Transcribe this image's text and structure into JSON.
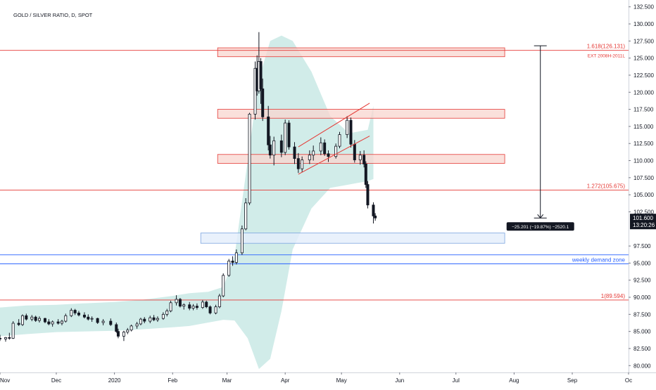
{
  "chart_data": {
    "type": "candlestick",
    "title": "GOLD / SILVER RATIO, D, SPOT",
    "x_labels": [
      {
        "date": "2019-11-01",
        "label": "Nov"
      },
      {
        "date": "2019-12-01",
        "label": "Dec"
      },
      {
        "date": "2020-01-01",
        "label": "2020"
      },
      {
        "date": "2020-02-01",
        "label": "Feb"
      },
      {
        "date": "2020-03-01",
        "label": "Mar"
      },
      {
        "date": "2020-04-01",
        "label": "Apr"
      },
      {
        "date": "2020-05-01",
        "label": "May"
      },
      {
        "date": "2020-06-01",
        "label": "Jun"
      },
      {
        "date": "2020-07-01",
        "label": "Jul"
      },
      {
        "date": "2020-08-01",
        "label": "Aug"
      },
      {
        "date": "2020-09-01",
        "label": "Sep"
      },
      {
        "date": "2020-10-01",
        "label": "Oc"
      }
    ],
    "xlim": [
      "2019-11-01",
      "2020-10-01"
    ],
    "ylim": [
      79.0,
      133.5
    ],
    "y_ticks": [
      "132.500",
      "130.000",
      "127.500",
      "125.000",
      "122.500",
      "120.000",
      "117.500",
      "115.000",
      "112.500",
      "110.000",
      "107.500",
      "105.000",
      "102.500",
      "97.500",
      "95.000",
      "92.500",
      "90.000",
      "87.500",
      "85.000",
      "82.500",
      "80.000"
    ],
    "last_price": {
      "value": 101.6,
      "label": "101.600",
      "countdown": "13:20:26"
    },
    "horizontal_levels": [
      {
        "value": 126.131,
        "label": "1.618(126.131)",
        "sublabel": "EXT 2008H-2011L",
        "color": "#e53935"
      },
      {
        "value": 105.675,
        "label": "1.272(105.675)",
        "color": "#e53935"
      },
      {
        "value": 89.594,
        "label": "1(89.594)",
        "color": "#e53935"
      },
      {
        "value": 96.2,
        "label": "",
        "color": "#2962ff"
      },
      {
        "value": 94.9,
        "label": "weekly demand zone",
        "color": "#2962ff"
      }
    ],
    "zones": [
      {
        "from": "2020-02-25",
        "to": "2020-07-27",
        "low": 125.2,
        "high": 126.5,
        "color": "red"
      },
      {
        "from": "2020-02-25",
        "to": "2020-07-27",
        "low": 116.2,
        "high": 117.5,
        "color": "red"
      },
      {
        "from": "2020-02-25",
        "to": "2020-07-27",
        "low": 109.6,
        "high": 110.9,
        "color": "red"
      },
      {
        "from": "2020-02-16",
        "to": "2020-07-27",
        "low": 97.9,
        "high": 99.4,
        "color": "blue"
      }
    ],
    "channel": [
      {
        "x1": "2020-04-08",
        "y1": 112.0,
        "x2": "2020-05-16",
        "y2": 118.4
      },
      {
        "x1": "2020-04-08",
        "y1": 108.0,
        "x2": "2020-05-16",
        "y2": 113.6
      }
    ],
    "measure": {
      "x": "2020-08-15",
      "from": 126.8,
      "to": 101.6,
      "label": "−25.201 (−19.87%) −2520.1"
    },
    "band": {
      "dates": [
        "2019-11-01",
        "2019-11-15",
        "2019-12-01",
        "2019-12-15",
        "2020-01-01",
        "2020-01-15",
        "2020-02-01",
        "2020-02-10",
        "2020-02-20",
        "2020-02-28",
        "2020-03-05",
        "2020-03-12",
        "2020-03-18",
        "2020-03-24",
        "2020-03-30",
        "2020-04-05",
        "2020-04-15",
        "2020-04-25",
        "2020-05-05",
        "2020-05-15",
        "2020-05-18"
      ],
      "upper": [
        88.5,
        88.8,
        88.9,
        89.1,
        89.3,
        89.6,
        90.2,
        90.6,
        90.8,
        91.5,
        96.0,
        110.0,
        122.0,
        127.5,
        128.3,
        127.5,
        123.0,
        116.5,
        114.0,
        114.5,
        118.0
      ],
      "lower": [
        84.3,
        84.6,
        84.9,
        85.0,
        85.1,
        85.3,
        85.6,
        85.8,
        86.3,
        86.7,
        86.6,
        84.0,
        79.5,
        81.0,
        88.0,
        97.0,
        103.0,
        106.0,
        106.5,
        107.0,
        107.3
      ]
    },
    "candles": [
      [
        "2019-11-01",
        84.0,
        84.5,
        83.6,
        83.9
      ],
      [
        "2019-11-04",
        83.9,
        84.2,
        83.5,
        84.1
      ],
      [
        "2019-11-06",
        84.1,
        84.8,
        83.8,
        84.0
      ],
      [
        "2019-11-08",
        84.0,
        86.5,
        83.9,
        86.2
      ],
      [
        "2019-11-11",
        86.2,
        86.8,
        85.8,
        86.0
      ],
      [
        "2019-11-13",
        86.0,
        87.5,
        85.8,
        87.3
      ],
      [
        "2019-11-15",
        87.3,
        87.6,
        86.6,
        86.8
      ],
      [
        "2019-11-18",
        86.8,
        87.4,
        86.5,
        87.1
      ],
      [
        "2019-11-20",
        87.1,
        87.3,
        86.4,
        86.6
      ],
      [
        "2019-11-22",
        86.6,
        87.2,
        86.3,
        86.9
      ],
      [
        "2019-11-25",
        86.9,
        87.0,
        86.2,
        86.4
      ],
      [
        "2019-11-27",
        86.4,
        86.8,
        85.9,
        86.1
      ],
      [
        "2019-11-29",
        86.1,
        86.6,
        85.7,
        86.4
      ],
      [
        "2019-12-02",
        86.4,
        86.8,
        86.0,
        86.2
      ],
      [
        "2019-12-04",
        86.2,
        86.7,
        85.9,
        86.5
      ],
      [
        "2019-12-06",
        86.5,
        87.6,
        86.3,
        87.3
      ],
      [
        "2019-12-09",
        87.3,
        88.4,
        87.1,
        88.1
      ],
      [
        "2019-12-11",
        88.1,
        88.3,
        87.4,
        87.7
      ],
      [
        "2019-12-13",
        87.7,
        88.0,
        87.2,
        87.4
      ],
      [
        "2019-12-16",
        87.4,
        87.8,
        86.9,
        87.1
      ],
      [
        "2019-12-18",
        87.1,
        87.5,
        86.6,
        86.8
      ],
      [
        "2019-12-20",
        86.8,
        87.2,
        86.4,
        86.9
      ],
      [
        "2019-12-23",
        86.9,
        87.0,
        86.1,
        86.3
      ],
      [
        "2019-12-26",
        86.3,
        86.8,
        85.9,
        86.5
      ],
      [
        "2019-12-30",
        86.5,
        86.9,
        85.8,
        86.0
      ],
      [
        "2020-01-02",
        86.0,
        86.3,
        84.8,
        85.0
      ],
      [
        "2020-01-03",
        85.0,
        85.4,
        84.0,
        84.3
      ],
      [
        "2020-01-06",
        84.3,
        85.1,
        83.6,
        84.9
      ],
      [
        "2020-01-08",
        84.9,
        85.5,
        84.6,
        85.2
      ],
      [
        "2020-01-10",
        85.2,
        86.0,
        85.0,
        85.8
      ],
      [
        "2020-01-13",
        85.8,
        86.4,
        85.4,
        86.1
      ],
      [
        "2020-01-15",
        86.1,
        87.0,
        85.9,
        86.8
      ],
      [
        "2020-01-17",
        86.8,
        87.1,
        86.2,
        86.5
      ],
      [
        "2020-01-20",
        86.5,
        87.3,
        86.2,
        87.0
      ],
      [
        "2020-01-22",
        87.0,
        87.4,
        86.5,
        86.7
      ],
      [
        "2020-01-24",
        86.7,
        87.2,
        86.4,
        86.9
      ],
      [
        "2020-01-27",
        86.9,
        87.8,
        86.7,
        87.5
      ],
      [
        "2020-01-29",
        87.5,
        88.3,
        87.2,
        88.0
      ],
      [
        "2020-01-31",
        88.0,
        89.5,
        87.8,
        89.2
      ],
      [
        "2020-02-03",
        89.2,
        90.3,
        88.8,
        89.7
      ],
      [
        "2020-02-05",
        89.7,
        89.9,
        88.5,
        88.7
      ],
      [
        "2020-02-07",
        88.7,
        89.1,
        88.2,
        88.9
      ],
      [
        "2020-02-10",
        88.9,
        89.3,
        88.1,
        88.4
      ],
      [
        "2020-02-12",
        88.4,
        89.0,
        88.1,
        88.7
      ],
      [
        "2020-02-14",
        88.7,
        89.1,
        88.2,
        88.5
      ],
      [
        "2020-02-17",
        88.5,
        89.6,
        88.3,
        89.3
      ],
      [
        "2020-02-19",
        89.3,
        89.5,
        88.4,
        88.6
      ],
      [
        "2020-02-21",
        88.6,
        88.8,
        87.5,
        87.7
      ],
      [
        "2020-02-24",
        87.7,
        88.9,
        87.5,
        88.6
      ],
      [
        "2020-02-26",
        88.6,
        90.5,
        88.4,
        90.2
      ],
      [
        "2020-02-28",
        90.2,
        93.5,
        90.0,
        93.2
      ],
      [
        "2020-03-02",
        93.2,
        95.6,
        93.0,
        95.3
      ],
      [
        "2020-03-04",
        95.3,
        96.0,
        94.6,
        95.1
      ],
      [
        "2020-03-06",
        95.1,
        97.0,
        94.8,
        96.5
      ],
      [
        "2020-03-09",
        96.5,
        100.5,
        96.2,
        100.0
      ],
      [
        "2020-03-11",
        100.0,
        104.5,
        99.8,
        103.8
      ],
      [
        "2020-03-13",
        103.8,
        117.0,
        103.5,
        116.8
      ],
      [
        "2020-03-16",
        116.8,
        124.5,
        116.0,
        123.5
      ],
      [
        "2020-03-17",
        123.5,
        125.4,
        119.5,
        120.2
      ],
      [
        "2020-03-18",
        120.2,
        128.8,
        119.8,
        124.5
      ],
      [
        "2020-03-19",
        124.5,
        125.0,
        118.3,
        120.5
      ],
      [
        "2020-03-20",
        120.5,
        122.0,
        115.8,
        116.4
      ],
      [
        "2020-03-23",
        116.4,
        118.0,
        111.5,
        112.3
      ],
      [
        "2020-03-24",
        112.3,
        113.6,
        110.3,
        110.8
      ],
      [
        "2020-03-26",
        110.8,
        113.5,
        109.3,
        112.9
      ],
      [
        "2020-03-30",
        112.9,
        113.8,
        110.5,
        111.2
      ],
      [
        "2020-04-01",
        111.2,
        116.0,
        110.8,
        115.5
      ],
      [
        "2020-04-03",
        115.5,
        115.9,
        111.6,
        112.0
      ],
      [
        "2020-04-06",
        112.0,
        112.7,
        109.5,
        110.3
      ],
      [
        "2020-04-08",
        110.3,
        111.1,
        108.2,
        108.8
      ],
      [
        "2020-04-10",
        108.8,
        110.6,
        108.3,
        110.1
      ],
      [
        "2020-04-14",
        110.1,
        111.5,
        109.5,
        110.8
      ],
      [
        "2020-04-16",
        110.8,
        112.2,
        110.0,
        111.4
      ],
      [
        "2020-04-20",
        111.4,
        113.4,
        110.8,
        112.6
      ],
      [
        "2020-04-22",
        112.6,
        113.1,
        110.7,
        111.0
      ],
      [
        "2020-04-24",
        111.0,
        111.5,
        109.8,
        110.6
      ],
      [
        "2020-04-28",
        110.6,
        112.5,
        110.3,
        112.1
      ],
      [
        "2020-04-30",
        112.1,
        114.2,
        111.8,
        113.8
      ],
      [
        "2020-05-04",
        113.8,
        116.5,
        113.3,
        115.9
      ],
      [
        "2020-05-06",
        115.9,
        116.3,
        111.9,
        112.4
      ],
      [
        "2020-05-08",
        112.4,
        113.0,
        109.7,
        110.1
      ],
      [
        "2020-05-11",
        110.1,
        111.4,
        109.4,
        110.8
      ],
      [
        "2020-05-13",
        110.8,
        111.5,
        109.0,
        109.5
      ],
      [
        "2020-05-14",
        109.5,
        109.9,
        106.0,
        106.5
      ],
      [
        "2020-05-15",
        106.5,
        107.0,
        103.0,
        103.5
      ],
      [
        "2020-05-18",
        103.5,
        103.9,
        100.8,
        101.9
      ],
      [
        "2020-05-19",
        101.9,
        102.3,
        101.2,
        101.6
      ]
    ]
  }
}
